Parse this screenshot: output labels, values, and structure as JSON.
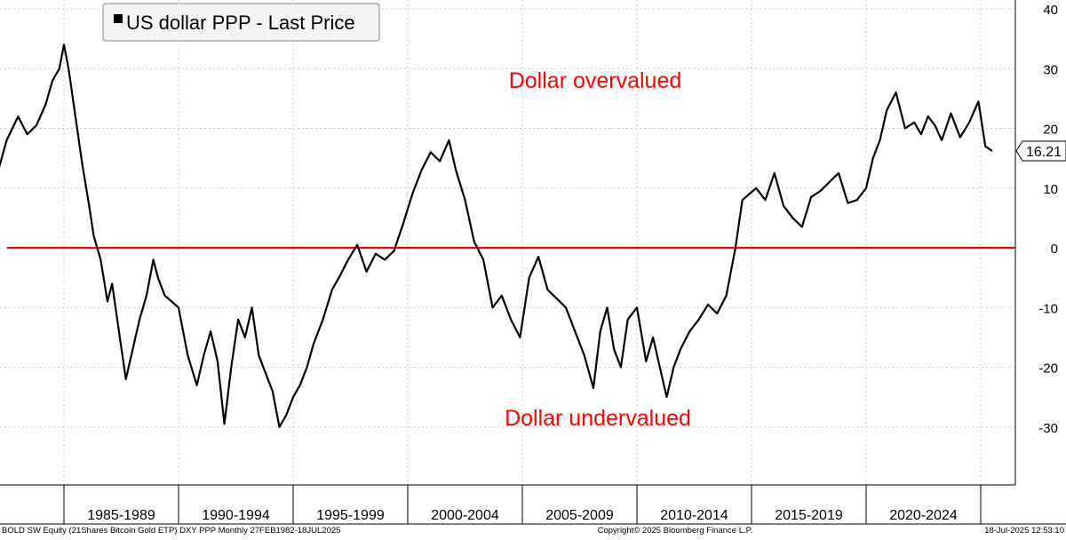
{
  "chart_data": {
    "type": "line",
    "legend": {
      "label": "US dollar PPP - Last Price",
      "placement": "top-left"
    },
    "last_value_label": "16.21",
    "y_axis": {
      "side": "right",
      "ylim": [
        -40,
        40
      ],
      "ticks": [
        40,
        30,
        20,
        10,
        0,
        -10,
        -20,
        -30
      ]
    },
    "x_axis": {
      "ticks": [
        "1985-1989",
        "1990-1994",
        "1995-1999",
        "2000-2004",
        "2005-2009",
        "2010-2014",
        "2015-2019",
        "2020-2024"
      ],
      "range": [
        "1982-02",
        "2025-07"
      ]
    },
    "reference_line": {
      "value": 0,
      "color": "#ff0000"
    },
    "annotations": [
      {
        "text": "Dollar overvalued",
        "color": "#ff0000"
      },
      {
        "text": "Dollar undervalued",
        "color": "#ff0000"
      }
    ],
    "grid": true,
    "series": [
      {
        "name": "US dollar PPP - Last Price",
        "color": "#000000",
        "x": [
          1982.1,
          1982.5,
          1983.0,
          1983.4,
          1983.8,
          1984.2,
          1984.5,
          1984.8,
          1985.0,
          1985.2,
          1985.5,
          1985.8,
          1986.1,
          1986.3,
          1986.6,
          1986.9,
          1987.1,
          1987.4,
          1987.7,
          1988.0,
          1988.3,
          1988.6,
          1988.9,
          1989.1,
          1989.4,
          1989.7,
          1990.0,
          1990.4,
          1990.8,
          1991.1,
          1991.4,
          1991.7,
          1992.0,
          1992.3,
          1992.6,
          1992.9,
          1993.2,
          1993.5,
          1993.8,
          1994.1,
          1994.4,
          1994.7,
          1995.0,
          1995.3,
          1995.6,
          1995.9,
          1996.3,
          1996.7,
          1997.0,
          1997.4,
          1997.8,
          1998.2,
          1998.6,
          1999.0,
          1999.4,
          1999.8,
          2000.2,
          2000.6,
          2001.0,
          2001.4,
          2001.8,
          2002.1,
          2002.5,
          2002.9,
          2003.3,
          2003.7,
          2004.1,
          2004.5,
          2004.9,
          2005.3,
          2005.7,
          2006.1,
          2006.5,
          2006.9,
          2007.3,
          2007.7,
          2008.1,
          2008.4,
          2008.7,
          2009.0,
          2009.3,
          2009.6,
          2010.0,
          2010.4,
          2010.7,
          2011.0,
          2011.3,
          2011.6,
          2011.9,
          2012.3,
          2012.7,
          2013.1,
          2013.5,
          2013.9,
          2014.3,
          2014.6,
          2014.9,
          2015.2,
          2015.6,
          2016.0,
          2016.4,
          2016.8,
          2017.2,
          2017.6,
          2018.0,
          2018.4,
          2018.8,
          2019.2,
          2019.6,
          2020.0,
          2020.3,
          2020.6,
          2020.9,
          2021.3,
          2021.7,
          2022.1,
          2022.4,
          2022.7,
          2023.0,
          2023.3,
          2023.7,
          2024.1,
          2024.5,
          2024.9,
          2025.2,
          2025.5
        ],
        "values": [
          12.5,
          18.0,
          22.0,
          19.0,
          20.5,
          24.0,
          28.0,
          30.0,
          34.0,
          30.0,
          22.0,
          14.0,
          7.0,
          2.0,
          -2.0,
          -9.0,
          -6.0,
          -14.0,
          -22.0,
          -17.0,
          -12.0,
          -8.0,
          -2.0,
          -5.0,
          -8.0,
          -9.0,
          -10.0,
          -18.0,
          -23.0,
          -18.0,
          -14.0,
          -19.0,
          -29.5,
          -20.0,
          -12.0,
          -15.0,
          -10.0,
          -18.0,
          -21.0,
          -24.0,
          -30.0,
          -28.0,
          -25.0,
          -23.0,
          -20.0,
          -16.0,
          -12.0,
          -7.0,
          -5.0,
          -2.0,
          0.5,
          -4.0,
          -1.0,
          -2.0,
          -0.5,
          4.0,
          9.0,
          13.0,
          16.0,
          14.5,
          18.0,
          13.0,
          8.0,
          1.0,
          -2.0,
          -10.0,
          -8.0,
          -12.0,
          -15.0,
          -5.0,
          -1.5,
          -7.0,
          -8.5,
          -10.0,
          -14.0,
          -18.0,
          -23.5,
          -14.0,
          -10.0,
          -17.0,
          -20.0,
          -12.0,
          -10.0,
          -19.0,
          -15.0,
          -20.0,
          -25.0,
          -20.0,
          -17.0,
          -14.0,
          -12.0,
          -9.5,
          -11.0,
          -8.0,
          0.0,
          8.0,
          9.0,
          10.0,
          8.0,
          12.5,
          7.0,
          5.0,
          3.5,
          8.5,
          9.5,
          11.0,
          12.5,
          7.5,
          8.0,
          10.0,
          15.0,
          18.0,
          23.0,
          26.0,
          20.0,
          21.0,
          19.0,
          22.0,
          20.5,
          18.0,
          22.5,
          18.5,
          21.0,
          24.5,
          17.0,
          16.21
        ]
      }
    ]
  },
  "footer": {
    "left": "BOLD SW Equity (21Shares Bitcoin Gold ETP) DXY PPP  Monthly 27FEB1982-18JUL2025",
    "center": "Copyright© 2025 Bloomberg Finance L.P.",
    "right": "18-Jul-2025 12:53:10"
  }
}
